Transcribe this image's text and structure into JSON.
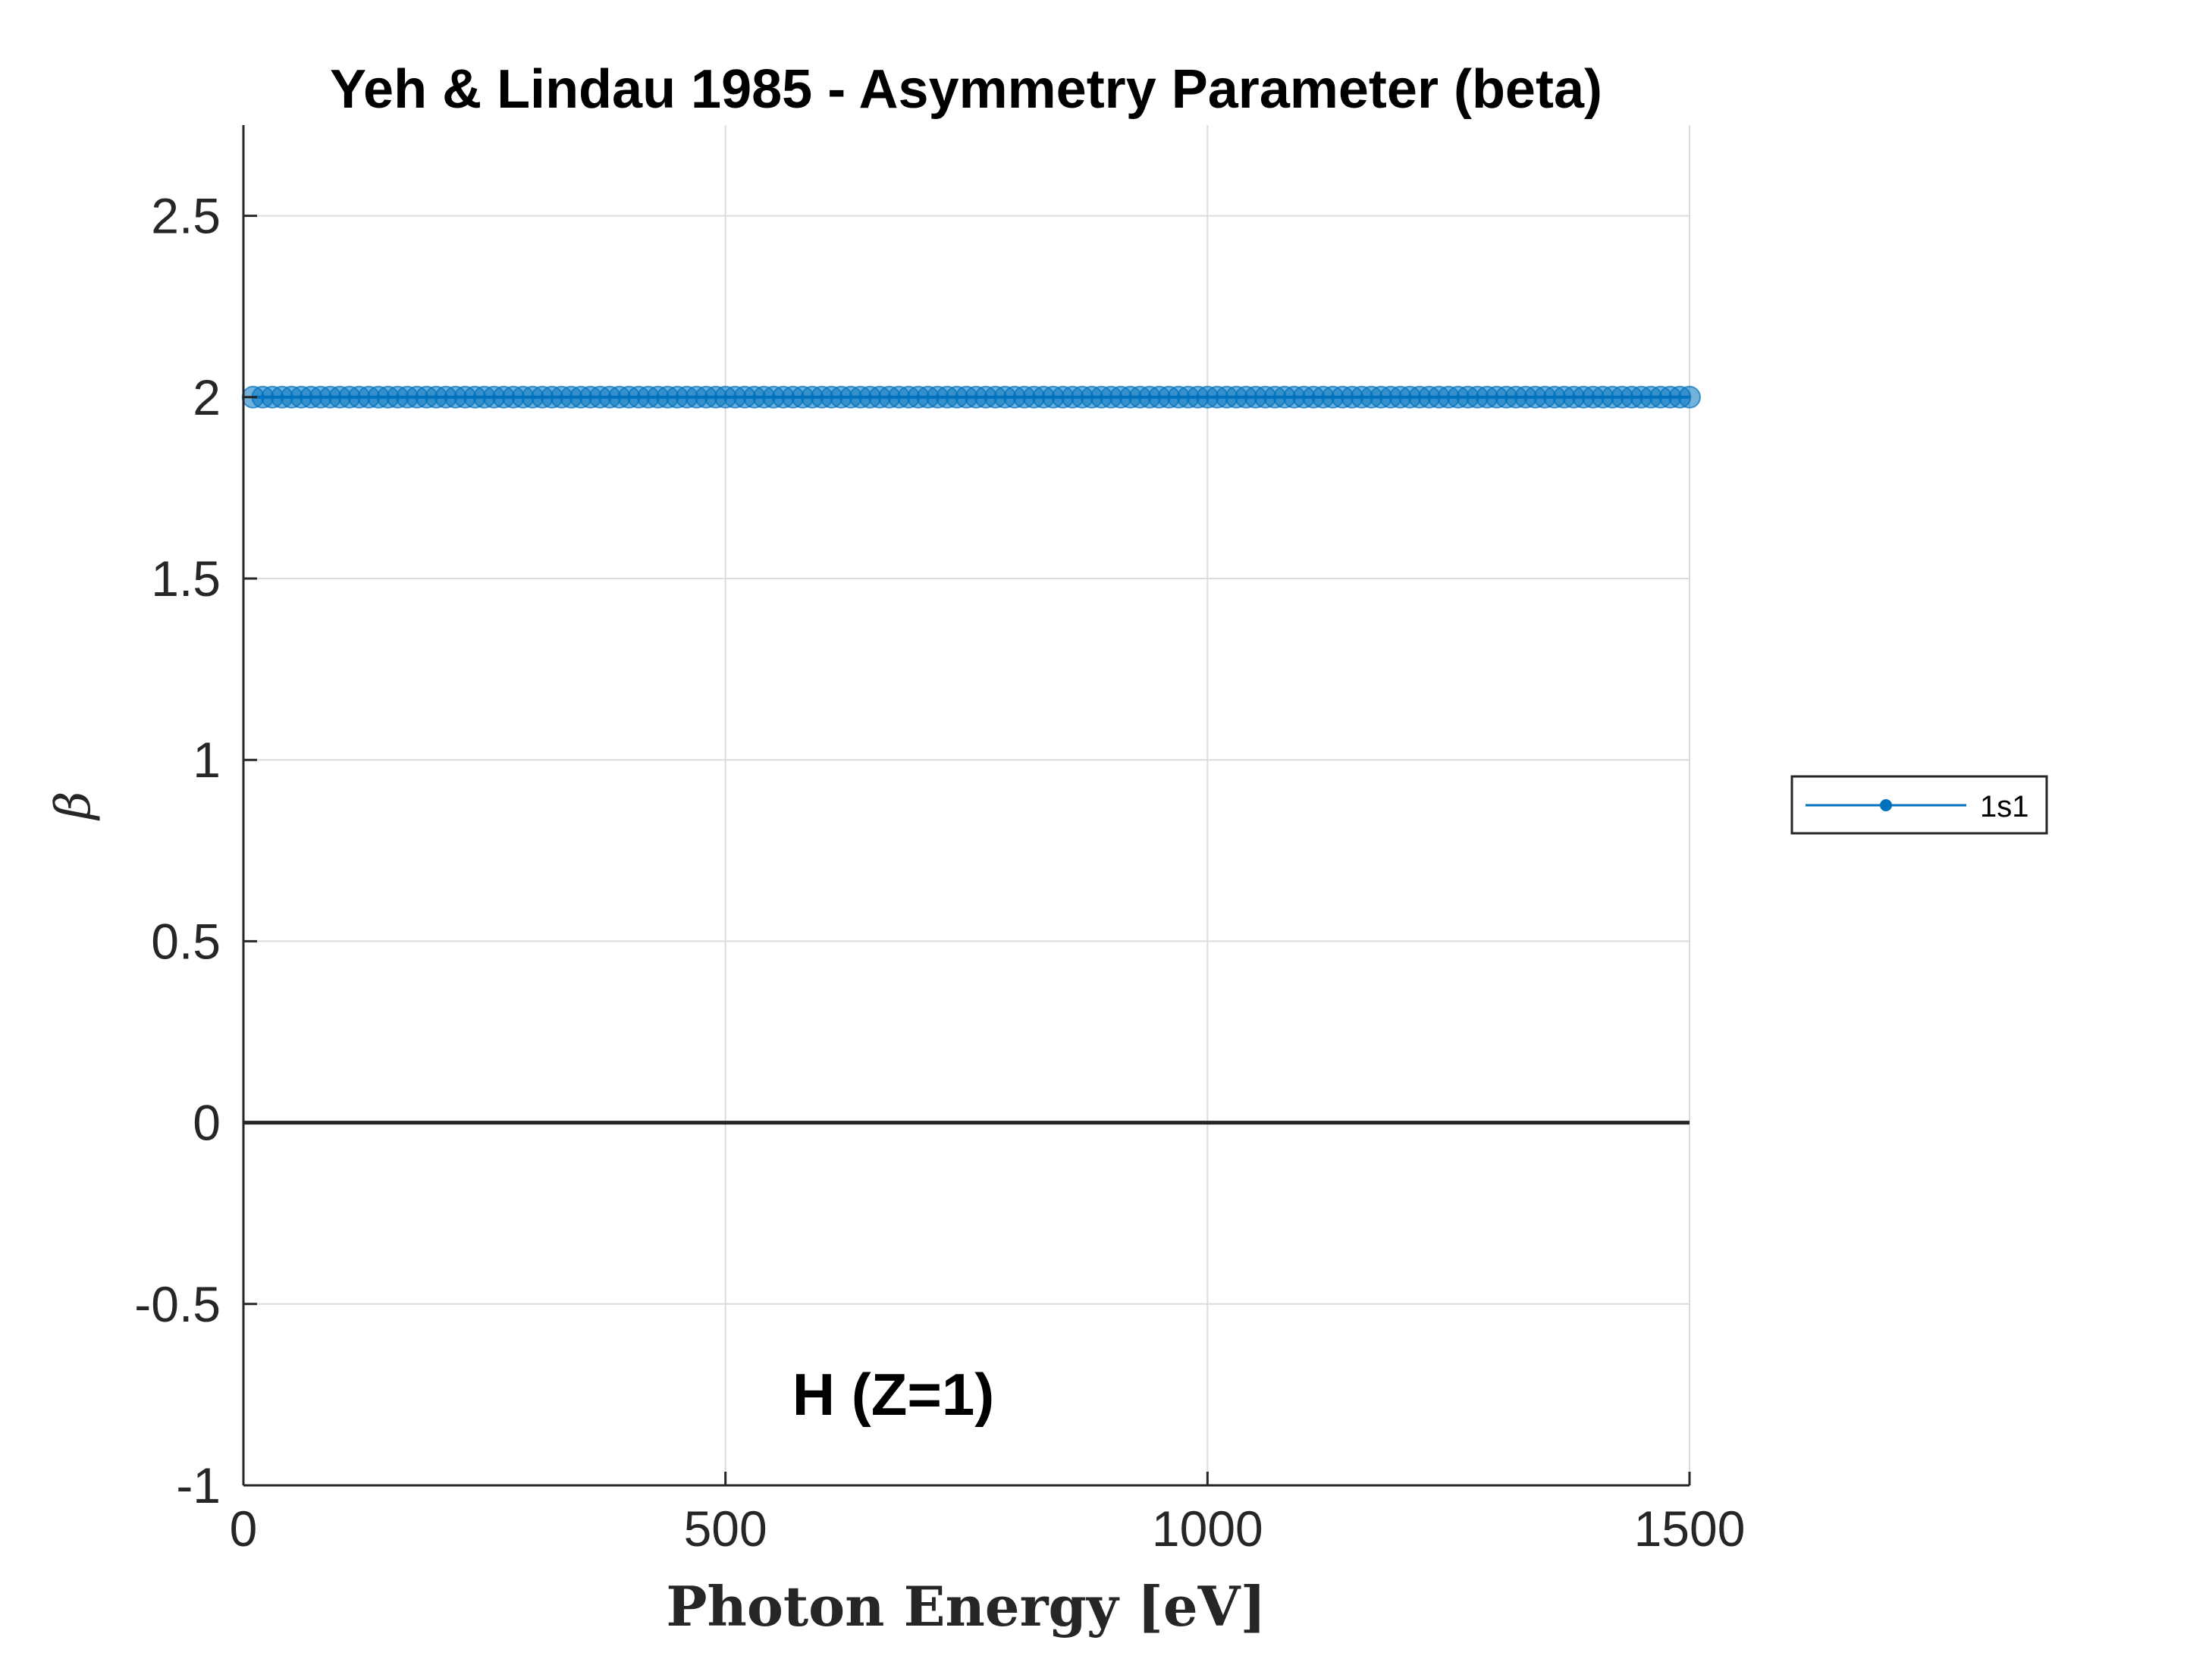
{
  "chart_data": {
    "type": "line",
    "title": "Yeh & Lindau 1985 - Asymmetry Parameter (beta)",
    "xlabel": "Photon Energy [eV]",
    "ylabel": "β",
    "xlim": [
      0,
      1500
    ],
    "ylim": [
      -1,
      2.75
    ],
    "x_ticks": [
      0,
      500,
      1000,
      1500
    ],
    "x_tick_labels": [
      "0",
      "500",
      "1000",
      "1500"
    ],
    "y_ticks": [
      -1,
      -0.5,
      0,
      0.5,
      1,
      1.5,
      2,
      2.5
    ],
    "y_tick_labels": [
      "-1",
      "-0.5",
      "0",
      "0.5",
      "1",
      "1.5",
      "2",
      "2.5"
    ],
    "grid": true,
    "legend_position": "right",
    "annotation": "H (Z=1)",
    "reference_line": {
      "y": 0,
      "color": "#262626"
    },
    "series": [
      {
        "name": "1s1",
        "color": "#0072BD",
        "marker": "circle",
        "x_start": 10,
        "x_end": 1500,
        "x_step": 10,
        "y_constant": 2
      }
    ]
  }
}
